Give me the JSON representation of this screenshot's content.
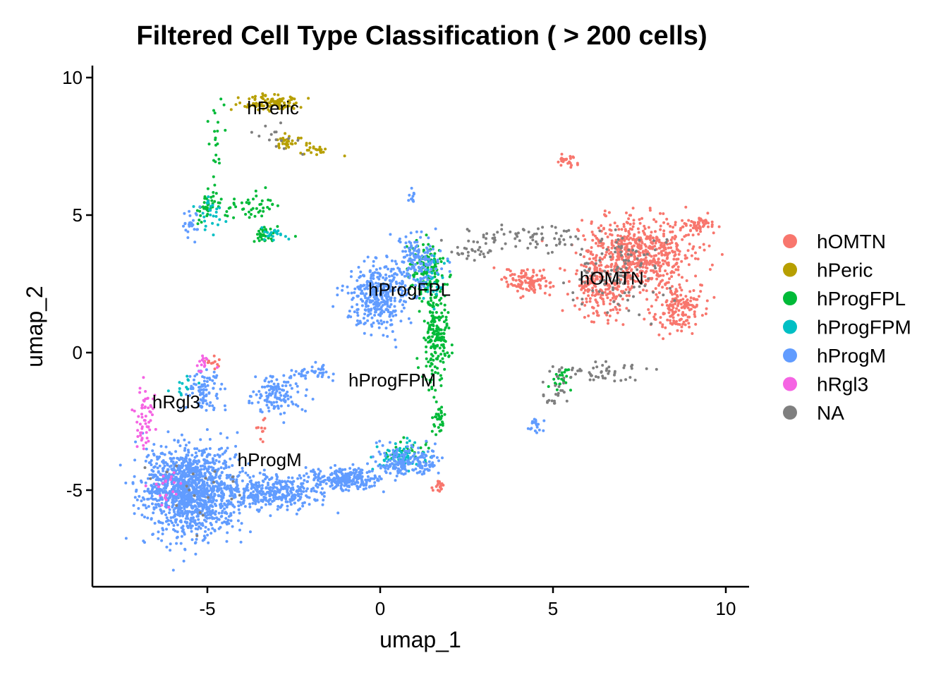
{
  "chart_data": {
    "type": "scatter",
    "title": "Filtered Cell Type Classification ( > 200 cells)",
    "xlabel": "umap_1",
    "ylabel": "umap_2",
    "xlim": [
      -8.4,
      10.6
    ],
    "ylim": [
      -8.4,
      10.6
    ],
    "xticks": [
      -5,
      0,
      5,
      10
    ],
    "yticks": [
      -5,
      0,
      5,
      10
    ],
    "xtick_labels": [
      "-5",
      "0",
      "5",
      "10"
    ],
    "ytick_labels": [
      "-5",
      "0",
      "5",
      "10"
    ],
    "grid": false,
    "legend_position": "right",
    "series": [
      {
        "name": "hOMTN",
        "color": "#F8766D",
        "regions": [
          {
            "center": [
              7.4,
              3.6
            ],
            "spread": [
              1.3,
              1.1
            ],
            "n": 620
          },
          {
            "center": [
              8.6,
              1.6
            ],
            "spread": [
              0.6,
              0.8
            ],
            "n": 160
          },
          {
            "center": [
              6.4,
              2.2
            ],
            "spread": [
              0.7,
              1.0
            ],
            "n": 160
          },
          {
            "center": [
              4.3,
              2.6
            ],
            "spread": [
              0.6,
              0.35
            ],
            "n": 110
          },
          {
            "center": [
              9.2,
              4.6
            ],
            "spread": [
              0.5,
              0.25
            ],
            "n": 60
          },
          {
            "center": [
              5.4,
              7.0
            ],
            "spread": [
              0.25,
              0.15
            ],
            "n": 25
          },
          {
            "center": [
              1.7,
              -4.9
            ],
            "spread": [
              0.15,
              0.2
            ],
            "n": 18
          },
          {
            "center": [
              -4.8,
              -0.3
            ],
            "spread": [
              0.25,
              0.3
            ],
            "n": 12
          },
          {
            "center": [
              -3.5,
              -2.8
            ],
            "spread": [
              0.3,
              0.3
            ],
            "n": 10
          }
        ]
      },
      {
        "name": "hPeric",
        "color": "#B79F00",
        "regions": [
          {
            "center": [
              -3.2,
              9.1
            ],
            "spread": [
              0.7,
              0.22
            ],
            "n": 110
          },
          {
            "center": [
              -2.6,
              7.7
            ],
            "spread": [
              0.5,
              0.2
            ],
            "n": 35
          },
          {
            "center": [
              -1.8,
              7.4
            ],
            "spread": [
              0.5,
              0.2
            ],
            "n": 20
          }
        ]
      },
      {
        "name": "hProgFPL",
        "color": "#00BA38",
        "regions": [
          {
            "center": [
              1.6,
              0.6
            ],
            "spread": [
              0.3,
              1.4
            ],
            "n": 200
          },
          {
            "center": [
              1.3,
              3.0
            ],
            "spread": [
              0.5,
              0.9
            ],
            "n": 120
          },
          {
            "center": [
              -4.9,
              5.3
            ],
            "spread": [
              0.35,
              0.45
            ],
            "n": 45
          },
          {
            "center": [
              -3.7,
              5.3
            ],
            "spread": [
              0.5,
              0.35
            ],
            "n": 40
          },
          {
            "center": [
              -3.3,
              4.3
            ],
            "spread": [
              0.4,
              0.2
            ],
            "n": 35
          },
          {
            "center": [
              -4.7,
              7.8
            ],
            "spread": [
              0.2,
              0.9
            ],
            "n": 20
          },
          {
            "center": [
              1.7,
              -2.4
            ],
            "spread": [
              0.15,
              0.4
            ],
            "n": 30
          },
          {
            "center": [
              5.2,
              -1.0
            ],
            "spread": [
              0.35,
              0.3
            ],
            "n": 25
          },
          {
            "center": [
              0.7,
              -3.6
            ],
            "spread": [
              0.6,
              0.4
            ],
            "n": 30
          }
        ]
      },
      {
        "name": "hProgFPM",
        "color": "#00BFC4",
        "regions": [
          {
            "center": [
              0.6,
              -3.8
            ],
            "spread": [
              0.7,
              0.4
            ],
            "n": 60
          },
          {
            "center": [
              1.5,
              2.8
            ],
            "spread": [
              0.4,
              0.7
            ],
            "n": 30
          },
          {
            "center": [
              -4.9,
              5.0
            ],
            "spread": [
              0.3,
              0.5
            ],
            "n": 25
          },
          {
            "center": [
              -3.0,
              4.3
            ],
            "spread": [
              0.4,
              0.2
            ],
            "n": 20
          },
          {
            "center": [
              -5.6,
              -1.3
            ],
            "spread": [
              0.3,
              0.4
            ],
            "n": 15
          }
        ]
      },
      {
        "name": "hProgM",
        "color": "#619CFF",
        "regions": [
          {
            "center": [
              -5.5,
              -5.0
            ],
            "spread": [
              1.1,
              1.3
            ],
            "n": 1300
          },
          {
            "center": [
              -3.2,
              -5.1
            ],
            "spread": [
              1.1,
              0.5
            ],
            "n": 350
          },
          {
            "center": [
              -1.0,
              -4.6
            ],
            "spread": [
              0.9,
              0.35
            ],
            "n": 260
          },
          {
            "center": [
              0.8,
              -4.0
            ],
            "spread": [
              0.8,
              0.45
            ],
            "n": 180
          },
          {
            "center": [
              -0.1,
              2.0
            ],
            "spread": [
              0.7,
              1.0
            ],
            "n": 360
          },
          {
            "center": [
              1.0,
              3.3
            ],
            "spread": [
              0.6,
              0.8
            ],
            "n": 160
          },
          {
            "center": [
              -3.0,
              -1.5
            ],
            "spread": [
              0.6,
              0.6
            ],
            "n": 130
          },
          {
            "center": [
              -2.0,
              -0.7
            ],
            "spread": [
              0.5,
              0.3
            ],
            "n": 40
          },
          {
            "center": [
              -5.1,
              -1.3
            ],
            "spread": [
              0.5,
              0.7
            ],
            "n": 90
          },
          {
            "center": [
              -5.5,
              4.7
            ],
            "spread": [
              0.25,
              0.45
            ],
            "n": 25
          },
          {
            "center": [
              4.5,
              -2.6
            ],
            "spread": [
              0.2,
              0.25
            ],
            "n": 20
          },
          {
            "center": [
              0.9,
              5.7
            ],
            "spread": [
              0.12,
              0.25
            ],
            "n": 12
          }
        ]
      },
      {
        "name": "hRgl3",
        "color": "#F564E3",
        "regions": [
          {
            "center": [
              -6.8,
              -2.5
            ],
            "spread": [
              0.25,
              0.9
            ],
            "n": 60
          },
          {
            "center": [
              -5.1,
              -0.4
            ],
            "spread": [
              0.25,
              0.25
            ],
            "n": 15
          },
          {
            "center": [
              -6.2,
              -5.0
            ],
            "spread": [
              0.45,
              0.6
            ],
            "n": 20
          }
        ]
      },
      {
        "name": "NA",
        "color": "#7F7F7F",
        "regions": [
          {
            "center": [
              4.5,
              4.2
            ],
            "spread": [
              1.6,
              0.35
            ],
            "n": 70
          },
          {
            "center": [
              6.9,
              3.0
            ],
            "spread": [
              1.1,
              1.2
            ],
            "n": 110
          },
          {
            "center": [
              6.2,
              -0.7
            ],
            "spread": [
              1.2,
              0.3
            ],
            "n": 55
          },
          {
            "center": [
              2.7,
              3.7
            ],
            "spread": [
              0.5,
              0.2
            ],
            "n": 25
          },
          {
            "center": [
              5.0,
              -1.6
            ],
            "spread": [
              0.35,
              0.4
            ],
            "n": 20
          },
          {
            "center": [
              -2.9,
              7.8
            ],
            "spread": [
              0.6,
              0.8
            ],
            "n": 15
          },
          {
            "center": [
              -5.4,
              -5.0
            ],
            "spread": [
              1.0,
              1.0
            ],
            "n": 20
          }
        ]
      }
    ],
    "cluster_labels": [
      {
        "text": "hPeric",
        "x": -3.1,
        "y": 8.9
      },
      {
        "text": "hOMTN",
        "x": 6.7,
        "y": 2.7
      },
      {
        "text": "hProgFPL",
        "x": 0.85,
        "y": 2.3
      },
      {
        "text": "hProgFPM",
        "x": 0.35,
        "y": -1.0
      },
      {
        "text": "hRgl3",
        "x": -5.9,
        "y": -1.8
      },
      {
        "text": "hProgM",
        "x": -3.2,
        "y": -3.9
      }
    ]
  }
}
